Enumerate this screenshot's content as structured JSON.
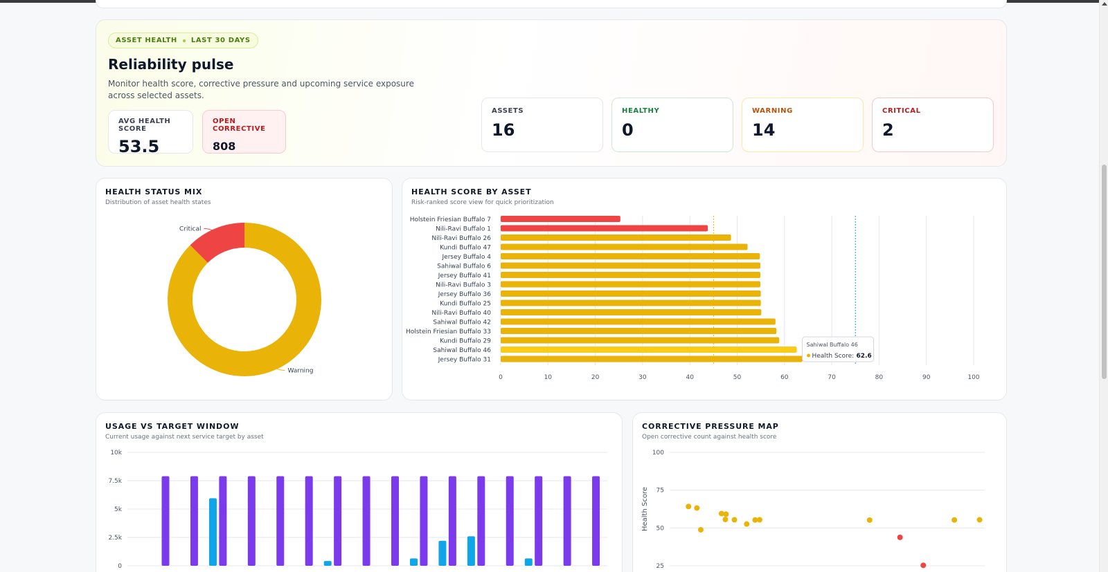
{
  "hero": {
    "pill_left": "ASSET HEALTH",
    "pill_right": "LAST 30 DAYS",
    "title": "Reliability pulse",
    "subtitle": "Monitor health score, corrective pressure and upcoming service exposure across selected assets.",
    "avg_label": "AVG HEALTH SCORE",
    "avg_value": "53.5",
    "open_label": "OPEN CORRECTIVE",
    "open_value": "808",
    "stats": {
      "assets_label": "ASSETS",
      "assets_value": "16",
      "healthy_label": "HEALTHY",
      "healthy_value": "0",
      "warning_label": "WARNING",
      "warning_value": "14",
      "critical_label": "CRITICAL",
      "critical_value": "2"
    }
  },
  "panels": {
    "mix_title": "HEALTH STATUS MIX",
    "mix_sub": "Distribution of asset health states",
    "score_title": "HEALTH SCORE BY ASSET",
    "score_sub": "Risk-ranked score view for quick prioritization",
    "usage_title": "USAGE VS TARGET WINDOW",
    "usage_sub": "Current usage against next service target by asset",
    "pressure_title": "CORRECTIVE PRESSURE MAP",
    "pressure_sub": "Open corrective count against health score"
  },
  "colors": {
    "warning": "#eab308",
    "critical": "#ef4444",
    "usage": "#0ea5e9",
    "target": "#7c3aed"
  },
  "chart_data": [
    {
      "type": "pie",
      "labels": [
        "Critical",
        "Warning"
      ],
      "values": [
        2,
        14
      ]
    },
    {
      "type": "bar",
      "orientation": "horizontal",
      "categories": [
        "Holstein Friesian Buffalo 7",
        "Nili-Ravi Buffalo 1",
        "Nili-Ravi Buffalo 26",
        "Kundi Buffalo 47",
        "Jersey Buffalo 4",
        "Sahiwal Buffalo 6",
        "Jersey Buffalo 41",
        "Nili-Ravi Buffalo 3",
        "Jersey Buffalo 36",
        "Kundi Buffalo 25",
        "Nili-Ravi Buffalo 40",
        "Sahiwal Buffalo 42",
        "Holstein Friesian Buffalo 33",
        "Kundi Buffalo 29",
        "Sahiwal Buffalo 46",
        "Jersey Buffalo 31"
      ],
      "values": [
        25.3,
        43.8,
        48.7,
        52.2,
        54.8,
        54.9,
        54.9,
        54.9,
        55.0,
        55.0,
        55.1,
        58.1,
        58.3,
        58.9,
        62.6,
        63.8
      ],
      "xlim": [
        0,
        100
      ],
      "xticks": [
        0,
        10,
        20,
        30,
        40,
        50,
        60,
        70,
        80,
        90,
        100
      ],
      "reference_lines": [
        45,
        75
      ],
      "tooltip": {
        "asset": "Sahiwal Buffalo 46",
        "label": "Health Score:",
        "value": "62.6"
      }
    },
    {
      "type": "bar",
      "y_ticks": [
        "0",
        "2.5k",
        "5k",
        "7.5k",
        "10k"
      ],
      "ylim": [
        0,
        10000
      ],
      "series": [
        {
          "values": [
            7900,
            7900,
            7900,
            7900,
            7900,
            7900,
            7900,
            7900,
            7900,
            7900,
            7900,
            7900,
            7900,
            7900,
            7900,
            7900
          ]
        },
        {
          "values": [
            0,
            5950,
            0,
            0,
            0,
            420,
            0,
            0,
            650,
            2200,
            2600,
            0,
            650,
            0,
            0,
            0
          ]
        }
      ]
    },
    {
      "type": "scatter",
      "ylabel": "Health Score",
      "y_ticks": [
        "25",
        "50",
        "75",
        "100"
      ],
      "ylim": [
        25,
        100
      ],
      "points": [
        {
          "x": 12,
          "y": 64.2,
          "status": "warning"
        },
        {
          "x": 25,
          "y": 63.2,
          "status": "warning"
        },
        {
          "x": 31,
          "y": 48.8,
          "status": "warning"
        },
        {
          "x": 63,
          "y": 59.5,
          "status": "warning"
        },
        {
          "x": 70,
          "y": 59.1,
          "status": "warning"
        },
        {
          "x": 69,
          "y": 55.6,
          "status": "warning"
        },
        {
          "x": 83,
          "y": 55.4,
          "status": "warning"
        },
        {
          "x": 102,
          "y": 52.6,
          "status": "warning"
        },
        {
          "x": 115,
          "y": 55.3,
          "status": "warning"
        },
        {
          "x": 122,
          "y": 55.4,
          "status": "warning"
        },
        {
          "x": 292,
          "y": 55.2,
          "status": "warning"
        },
        {
          "x": 423,
          "y": 55.3,
          "status": "warning"
        },
        {
          "x": 462,
          "y": 55.4,
          "status": "warning"
        },
        {
          "x": 339,
          "y": 43.8,
          "status": "critical"
        },
        {
          "x": 375,
          "y": 25.3,
          "status": "critical"
        }
      ]
    }
  ]
}
